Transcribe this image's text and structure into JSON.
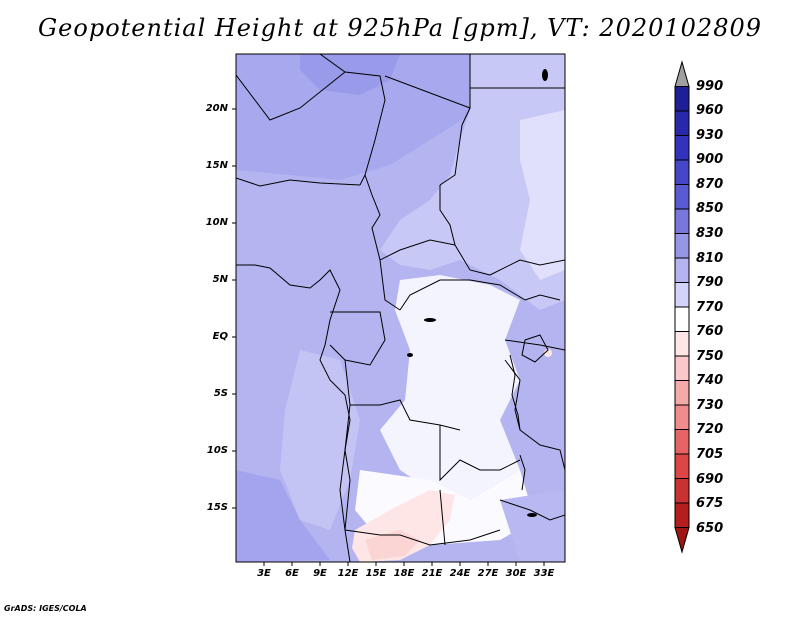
{
  "title": "Geopotential Height at 925hPa [gpm], VT: 2020102809",
  "footer": "GrADS: IGES/COLA",
  "map": {
    "lat_labels": [
      "20N",
      "15N",
      "10N",
      "5N",
      "EQ",
      "5S",
      "10S",
      "15S"
    ],
    "lon_labels": [
      "3E",
      "6E",
      "9E",
      "12E",
      "15E",
      "18E",
      "21E",
      "24E",
      "27E",
      "30E",
      "33E"
    ]
  },
  "colorbar": {
    "levels": [
      "990",
      "960",
      "930",
      "900",
      "870",
      "850",
      "830",
      "810",
      "790",
      "770",
      "760",
      "750",
      "740",
      "730",
      "720",
      "705",
      "690",
      "675",
      "650"
    ],
    "colors": [
      "#a0a0a0",
      "#1e1e96",
      "#2828aa",
      "#3232bc",
      "#4646c8",
      "#5a5ad2",
      "#7878dc",
      "#9696e6",
      "#b4b4f0",
      "#d2d2fa",
      "#ffffff",
      "#ffe6e6",
      "#fac8c8",
      "#f5aaaa",
      "#f08c8c",
      "#e66464",
      "#dc4646",
      "#c83232",
      "#b41e1e",
      "#a01414"
    ]
  },
  "chart_data": {
    "type": "heatmap",
    "title": "Geopotential Height at 925hPa [gpm], VT: 2020102809",
    "variable": "Geopotential Height at 925hPa",
    "units": "gpm",
    "valid_time": "2020102809",
    "lon_range": [
      0,
      35
    ],
    "lat_range": [
      -19,
      24
    ],
    "contour_levels": [
      650,
      675,
      690,
      705,
      720,
      730,
      740,
      750,
      760,
      770,
      790,
      810,
      830,
      850,
      870,
      900,
      930,
      960,
      990
    ],
    "xlabel": "",
    "ylabel": ""
  }
}
